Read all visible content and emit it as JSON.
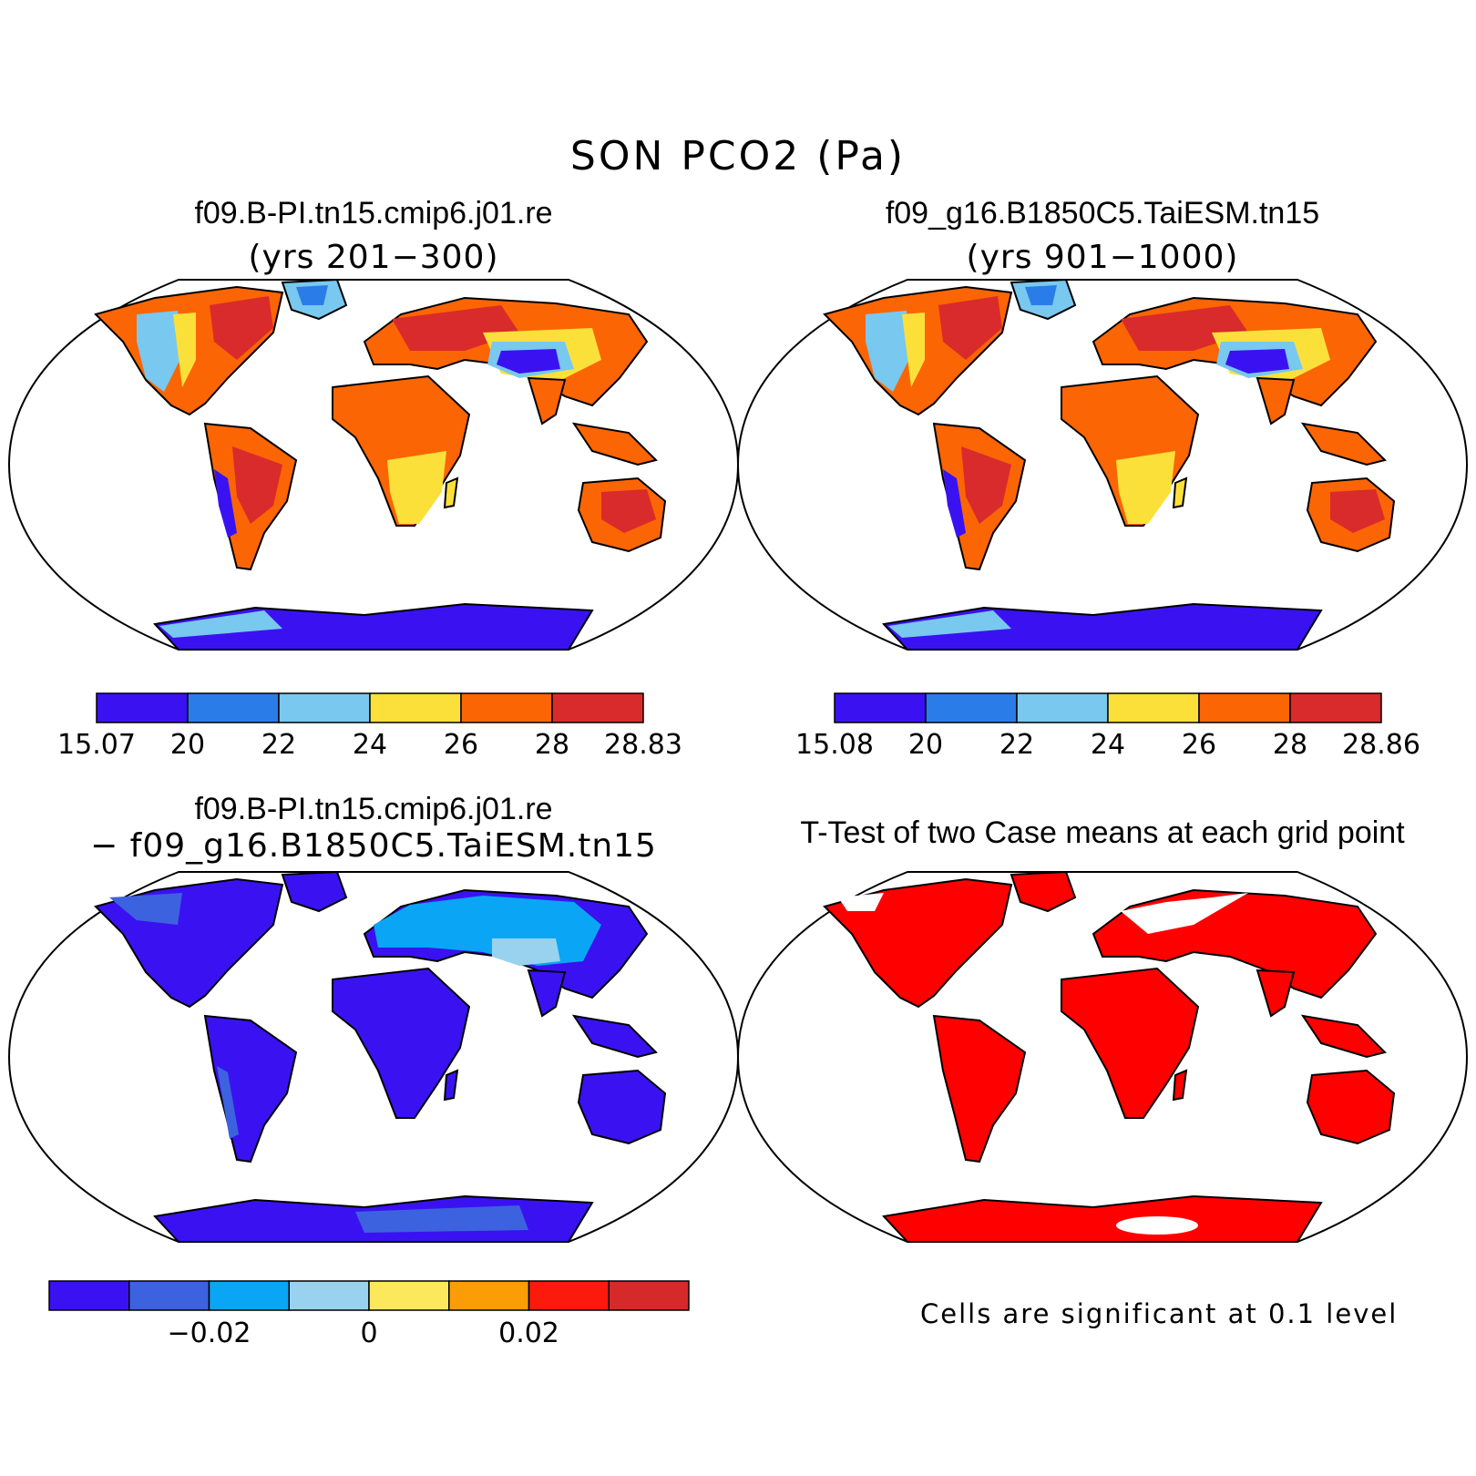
{
  "figure": {
    "title": "SON PCO2 (Pa)"
  },
  "panels": [
    {
      "title": "f09.B-PI.tn15.cmip6.j01.re",
      "subtitle": "(yrs 201−300)",
      "colorbar": {
        "colors": [
          "#3a12f2",
          "#2a7de8",
          "#78c8ef",
          "#fce03a",
          "#fb6504",
          "#d92b2b"
        ],
        "labels": [
          "15.07",
          "20",
          "22",
          "24",
          "26",
          "28",
          "28.83"
        ]
      }
    },
    {
      "title": "f09_g16.B1850C5.TaiESM.tn15",
      "subtitle": "(yrs 901−1000)",
      "colorbar": {
        "colors": [
          "#3a12f2",
          "#2a7de8",
          "#78c8ef",
          "#fce03a",
          "#fb6504",
          "#d92b2b"
        ],
        "labels": [
          "15.08",
          "20",
          "22",
          "24",
          "26",
          "28",
          "28.86"
        ]
      }
    },
    {
      "title": "f09.B-PI.tn15.cmip6.j01.re",
      "subtitle": "− f09_g16.B1850C5.TaiESM.tn15",
      "colorbar": {
        "colors": [
          "#3a12f2",
          "#3d62df",
          "#0aa6f5",
          "#98d2ef",
          "#fbe85c",
          "#fc9c07",
          "#fb1a0b",
          "#d62a2a"
        ],
        "labels": [
          "−0.02",
          "0",
          "0.02"
        ]
      }
    },
    {
      "title": "T-Test of two Case means at each grid point",
      "note": "Cells are significant at 0.1 level",
      "significant_color": "#ff0000"
    }
  ]
}
